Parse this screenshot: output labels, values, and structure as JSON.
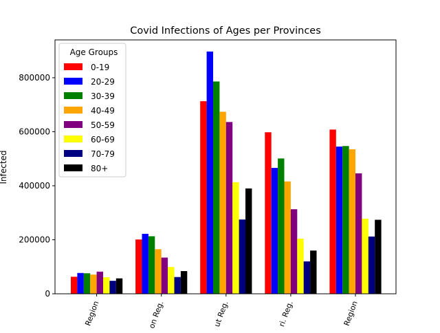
{
  "chart_data": {
    "type": "bar",
    "title": "Covid Infections of Ages per Provinces",
    "xlabel": "",
    "ylabel": "Infected",
    "categories": [
      "Region",
      "on Reg.",
      "ut Reg.",
      "ri. Reg.",
      "Region"
    ],
    "ylim": [
      0,
      940000
    ],
    "yticks": [
      0,
      200000,
      400000,
      600000,
      800000
    ],
    "grid": false,
    "legend": {
      "title": "Age Groups",
      "placement": "top-left"
    },
    "series": [
      {
        "name": "0-19",
        "color": "#ff0000",
        "values": [
          63000,
          201000,
          713000,
          598000,
          608000
        ]
      },
      {
        "name": "20-29",
        "color": "#0000ff",
        "values": [
          77000,
          222000,
          897000,
          466000,
          545000
        ]
      },
      {
        "name": "30-39",
        "color": "#008000",
        "values": [
          76000,
          213000,
          786000,
          501000,
          547000
        ]
      },
      {
        "name": "40-49",
        "color": "#ffa500",
        "values": [
          71000,
          165000,
          674000,
          416000,
          535000
        ]
      },
      {
        "name": "50-59",
        "color": "#800080",
        "values": [
          82000,
          134000,
          636000,
          313000,
          446000
        ]
      },
      {
        "name": "60-69",
        "color": "#ffff00",
        "values": [
          61000,
          99000,
          413000,
          204000,
          278000
        ]
      },
      {
        "name": "70-79",
        "color": "#000080",
        "values": [
          48000,
          62000,
          275000,
          120000,
          212000
        ]
      },
      {
        "name": "80+",
        "color": "#000000",
        "values": [
          57000,
          84000,
          390000,
          160000,
          274000
        ]
      }
    ]
  }
}
